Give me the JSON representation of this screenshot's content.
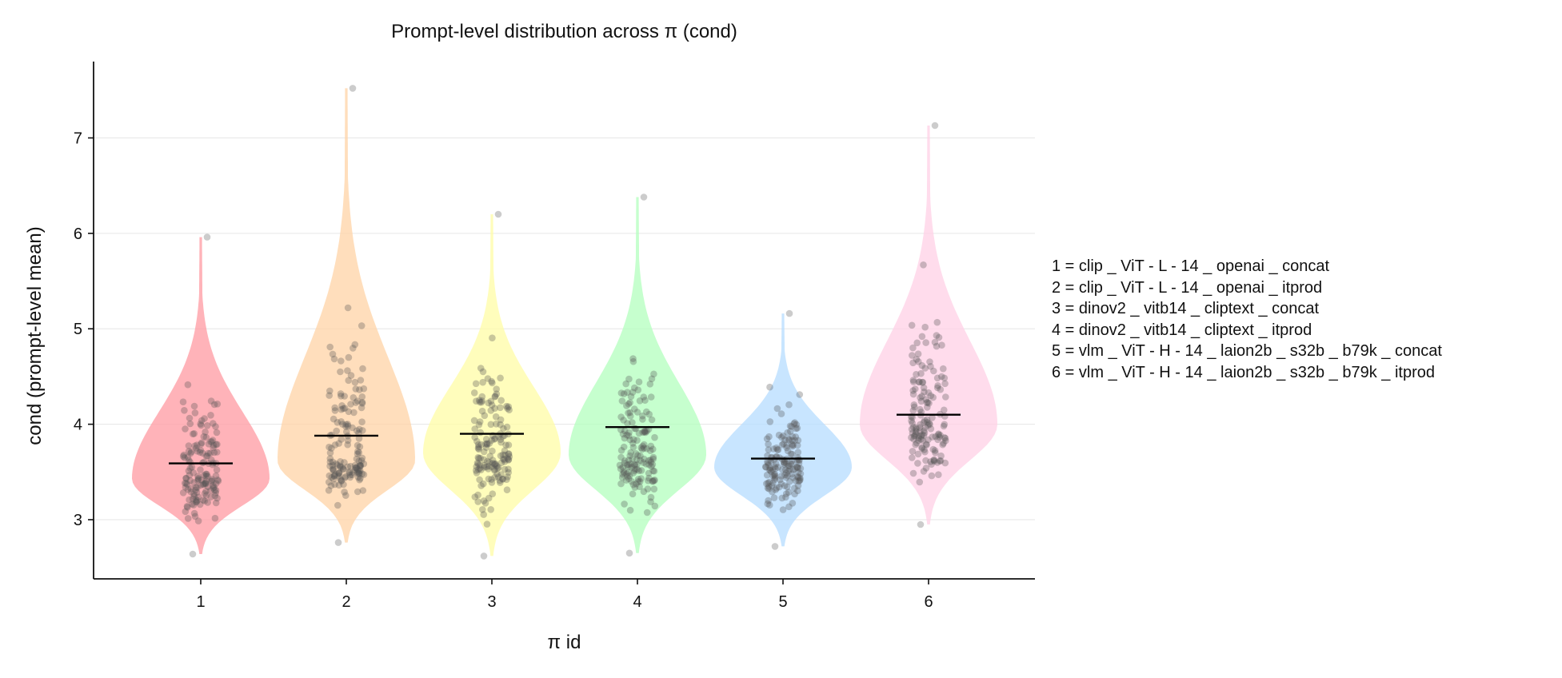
{
  "chart_data": {
    "type": "violin",
    "title": "Prompt-level distribution across π (cond)",
    "xlabel": "π id",
    "ylabel": "cond (prompt-level mean)",
    "categories": [
      "1",
      "2",
      "3",
      "4",
      "5",
      "6"
    ],
    "ylim": [
      2.38,
      7.8
    ],
    "yticks": [
      "3",
      "4",
      "5",
      "6",
      "7"
    ],
    "grid": "horizontal",
    "series": [
      {
        "name": "1",
        "label": "1 = clip _ ViT - L - 14 _ openai _ concat",
        "color": "#ff9aa2",
        "mean": 3.59,
        "min": 2.64,
        "max": 5.96,
        "mode": 3.43
      },
      {
        "name": "2",
        "label": "2 = clip _ ViT - L - 14 _ openai _ itprod",
        "color": "#ffd3a5",
        "mean": 3.88,
        "min": 2.76,
        "max": 7.52,
        "mode": 3.62
      },
      {
        "name": "3",
        "label": "3 = dinov2 _ vitb14 _ cliptext _ concat",
        "color": "#fffca6",
        "mean": 3.9,
        "min": 2.62,
        "max": 6.2,
        "mode": 3.7
      },
      {
        "name": "4",
        "label": "4 = dinov2 _ vitb14 _ cliptext _ itprod",
        "color": "#b3ffbd",
        "mean": 3.97,
        "min": 2.65,
        "max": 6.38,
        "mode": 3.68
      },
      {
        "name": "5",
        "label": "5 = vlm _ ViT - H - 14 _ laion2b _ s32b _ b79k _ concat",
        "color": "#b5dcff",
        "mean": 3.64,
        "min": 2.72,
        "max": 5.16,
        "mode": 3.55
      },
      {
        "name": "6",
        "label": "6 = vlm _ ViT - H - 14 _ laion2b _ s32b _ b79k _ itprod",
        "color": "#ffd0e5",
        "mean": 4.1,
        "min": 2.95,
        "max": 7.13,
        "mode": 4.0
      }
    ]
  }
}
